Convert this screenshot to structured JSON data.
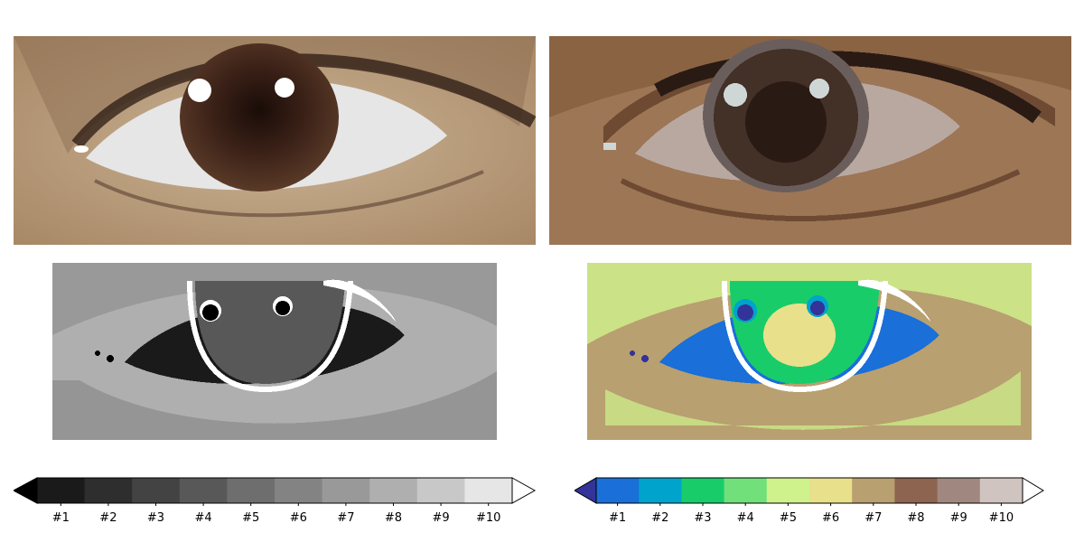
{
  "chart_data": [
    {
      "type": "heatmap",
      "panel": "original-photo",
      "description_colors": [
        "#c8b090",
        "#f0f0f0",
        "#3a2418",
        "#9a7a58"
      ]
    },
    {
      "type": "heatmap",
      "panel": "quantized-photo",
      "levels": 10,
      "colors": [
        "#9d7656",
        "#8a6343",
        "#a68464",
        "#6e4a32",
        "#2a1a14",
        "#433026",
        "#b8a8a0",
        "#cfd6d6",
        "#6a5e5c",
        "#b1896a"
      ]
    },
    {
      "type": "heatmap",
      "panel": "grayscale-labels",
      "colormap": "gray",
      "colorbar": {
        "extend": "both",
        "tick_labels": [
          "#1",
          "#2",
          "#3",
          "#4",
          "#5",
          "#6",
          "#7",
          "#8",
          "#9",
          "#10"
        ],
        "colors": [
          "#1a1a1a",
          "#2e2e2e",
          "#434343",
          "#585858",
          "#6e6e6e",
          "#838383",
          "#999999",
          "#afafaf",
          "#c8c8c8",
          "#e6e6e6"
        ],
        "under_color": "#000000",
        "over_color": "#ffffff"
      }
    },
    {
      "type": "heatmap",
      "panel": "terrain-labels",
      "colormap": "terrain",
      "colorbar": {
        "extend": "both",
        "tick_labels": [
          "#1",
          "#2",
          "#3",
          "#4",
          "#5",
          "#6",
          "#7",
          "#8",
          "#9",
          "#10"
        ],
        "colors": [
          "#1a6fd8",
          "#00a3cc",
          "#19cc6a",
          "#72e07a",
          "#cff28c",
          "#e8e08a",
          "#b8a070",
          "#8c6450",
          "#a08880",
          "#d0c4c0"
        ],
        "under_color": "#333399",
        "over_color": "#ffffff"
      }
    }
  ]
}
